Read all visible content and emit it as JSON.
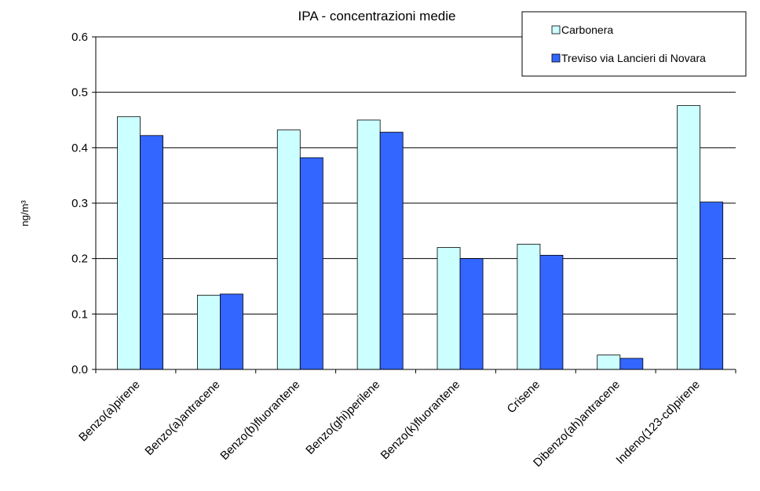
{
  "chart_data": {
    "type": "bar",
    "title": "IPA - concentrazioni medie",
    "y_label": "ng/m³",
    "categories": [
      "Benzo(a)pirene",
      "Benzo(a)antracene",
      "Benzo(b)fluorantene",
      "Benzo(ghi)perilene",
      "Benzo(k)fluorantene",
      "Crisene",
      "Dibenzo(ah)antracene",
      "Indeno(123-cd)pirene"
    ],
    "series": [
      {
        "name": "Carbonera",
        "color": "#ccffff",
        "values": [
          0.456,
          0.134,
          0.432,
          0.45,
          0.22,
          0.226,
          0.026,
          0.476
        ]
      },
      {
        "name": "Treviso via Lancieri di Novara",
        "color": "#3366ff",
        "values": [
          0.422,
          0.136,
          0.382,
          0.428,
          0.2,
          0.206,
          0.02,
          0.302
        ]
      }
    ],
    "ylim": [
      0,
      0.6
    ],
    "yticks": [
      {
        "value": 0,
        "label": "0.0"
      },
      0.1,
      0.2,
      0.3,
      0.4,
      0.5,
      0.6
    ],
    "grid": true,
    "legend": "upper right"
  }
}
